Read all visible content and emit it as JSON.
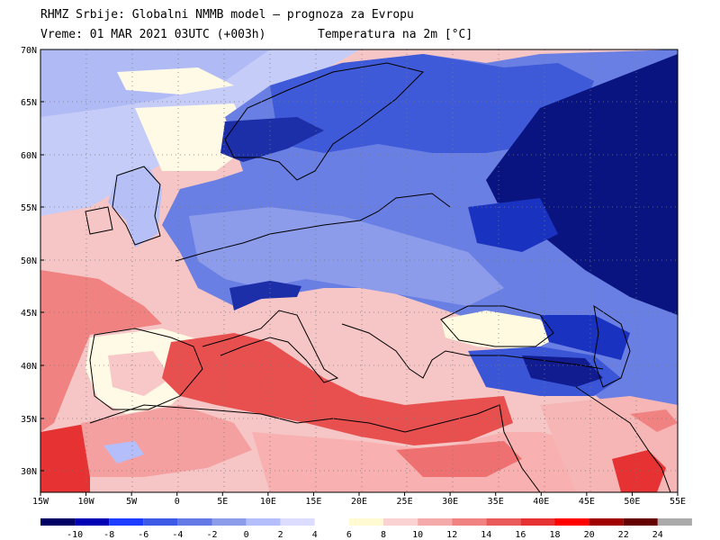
{
  "header": {
    "line1": "RHMZ Srbije: Globalni NMMB model — prognoza za Evropu",
    "line2": "Vreme: 01 MAR 2021 03UTC (+003h)",
    "line3": "Temperatura na 2m [°C]"
  },
  "map": {
    "lat_labels": [
      "70N",
      "65N",
      "60N",
      "55N",
      "50N",
      "45N",
      "40N",
      "35N",
      "30N"
    ],
    "lon_labels": [
      "15W",
      "10W",
      "5W",
      "0",
      "5E",
      "10E",
      "15E",
      "20E",
      "25E",
      "30E",
      "35E",
      "40E",
      "45E",
      "50E",
      "55E"
    ],
    "lon_range": [
      -15,
      55
    ],
    "lat_range": [
      28,
      70
    ],
    "colors": {
      "very_cold": "#000064",
      "cold": "#2846c8",
      "cool": "#96aaf0",
      "mild": "#fffff0",
      "warm": "#f5a0a0",
      "hot": "#e63232"
    }
  },
  "colorbar": {
    "labels": [
      "-10",
      "-8",
      "-6",
      "-4",
      "-2",
      "0",
      "2",
      "4",
      "6",
      "8",
      "10",
      "12",
      "14",
      "16",
      "18",
      "20",
      "22",
      "24"
    ],
    "colors": [
      "#000064",
      "#0000b4",
      "#1e3cff",
      "#3c5ae6",
      "#6478e6",
      "#8c9ceb",
      "#b4befa",
      "#dcdcff",
      "#ffffff",
      "#fffad2",
      "#fad2d2",
      "#f5aaaa",
      "#f08282",
      "#eb5a5a",
      "#e63232",
      "#ff0000",
      "#a00000",
      "#640000",
      "#aaaaaa"
    ]
  }
}
